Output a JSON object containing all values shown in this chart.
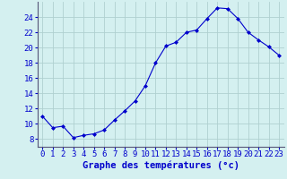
{
  "x": [
    0,
    1,
    2,
    3,
    4,
    5,
    6,
    7,
    8,
    9,
    10,
    11,
    12,
    13,
    14,
    15,
    16,
    17,
    18,
    19,
    20,
    21,
    22,
    23
  ],
  "y": [
    11.0,
    9.5,
    9.7,
    8.2,
    8.5,
    8.7,
    9.2,
    10.5,
    11.7,
    13.0,
    15.0,
    18.0,
    20.2,
    20.7,
    22.0,
    22.3,
    23.8,
    25.2,
    25.1,
    23.8,
    22.0,
    21.0,
    20.1,
    19.0
  ],
  "line_color": "#0000cc",
  "marker": "D",
  "marker_size": 2.0,
  "bg_color": "#d4f0f0",
  "grid_color": "#b0d0d0",
  "xlabel": "Graphe des températures (°c)",
  "xlabel_color": "#0000cc",
  "xlabel_fontsize": 7.5,
  "tick_color": "#0000cc",
  "tick_fontsize": 6.5,
  "ylim": [
    7,
    26
  ],
  "xlim": [
    -0.5,
    23.5
  ],
  "yticks": [
    8,
    10,
    12,
    14,
    16,
    18,
    20,
    22,
    24
  ],
  "xticks": [
    0,
    1,
    2,
    3,
    4,
    5,
    6,
    7,
    8,
    9,
    10,
    11,
    12,
    13,
    14,
    15,
    16,
    17,
    18,
    19,
    20,
    21,
    22,
    23
  ],
  "spine_color": "#555577"
}
